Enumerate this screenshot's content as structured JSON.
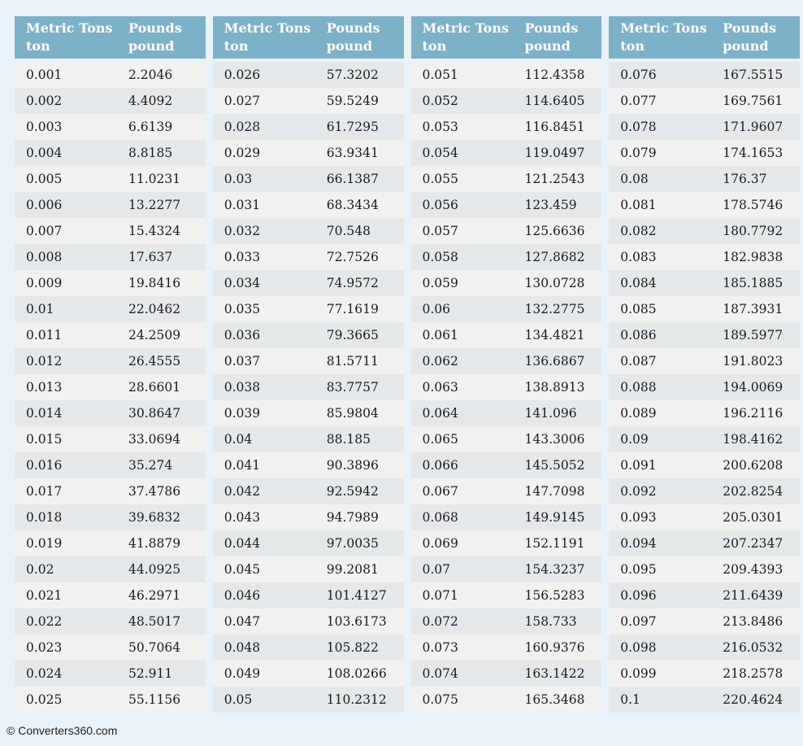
{
  "page": {
    "footer_text": "© Converters360.com"
  },
  "theme": {
    "page_bg": "#e9f2f8",
    "header_bg": "#7db1c7",
    "header_text": "#ffffff",
    "row_light": "#f1f1f0",
    "row_dark": "#e5e8ea",
    "cell_text": "#1b1b1b",
    "footer_text": "#222222"
  },
  "columns": {
    "tons_label_line1": "Metric Tons",
    "tons_label_line2": "ton",
    "pounds_label_line1": "Pounds",
    "pounds_label_line2": "pound"
  },
  "tables": [
    {
      "name": "table-1",
      "stripe_start": "light",
      "rows": [
        {
          "tons": "0.001",
          "pounds": "2.2046"
        },
        {
          "tons": "0.002",
          "pounds": "4.4092"
        },
        {
          "tons": "0.003",
          "pounds": "6.6139"
        },
        {
          "tons": "0.004",
          "pounds": "8.8185"
        },
        {
          "tons": "0.005",
          "pounds": "11.0231"
        },
        {
          "tons": "0.006",
          "pounds": "13.2277"
        },
        {
          "tons": "0.007",
          "pounds": "15.4324"
        },
        {
          "tons": "0.008",
          "pounds": "17.637"
        },
        {
          "tons": "0.009",
          "pounds": "19.8416"
        },
        {
          "tons": "0.01",
          "pounds": "22.0462"
        },
        {
          "tons": "0.011",
          "pounds": "24.2509"
        },
        {
          "tons": "0.012",
          "pounds": "26.4555"
        },
        {
          "tons": "0.013",
          "pounds": "28.6601"
        },
        {
          "tons": "0.014",
          "pounds": "30.8647"
        },
        {
          "tons": "0.015",
          "pounds": "33.0694"
        },
        {
          "tons": "0.016",
          "pounds": "35.274"
        },
        {
          "tons": "0.017",
          "pounds": "37.4786"
        },
        {
          "tons": "0.018",
          "pounds": "39.6832"
        },
        {
          "tons": "0.019",
          "pounds": "41.8879"
        },
        {
          "tons": "0.02",
          "pounds": "44.0925"
        },
        {
          "tons": "0.021",
          "pounds": "46.2971"
        },
        {
          "tons": "0.022",
          "pounds": "48.5017"
        },
        {
          "tons": "0.023",
          "pounds": "50.7064"
        },
        {
          "tons": "0.024",
          "pounds": "52.911"
        },
        {
          "tons": "0.025",
          "pounds": "55.1156"
        }
      ]
    },
    {
      "name": "table-2",
      "stripe_start": "dark",
      "rows": [
        {
          "tons": "0.026",
          "pounds": "57.3202"
        },
        {
          "tons": "0.027",
          "pounds": "59.5249"
        },
        {
          "tons": "0.028",
          "pounds": "61.7295"
        },
        {
          "tons": "0.029",
          "pounds": "63.9341"
        },
        {
          "tons": "0.03",
          "pounds": "66.1387"
        },
        {
          "tons": "0.031",
          "pounds": "68.3434"
        },
        {
          "tons": "0.032",
          "pounds": "70.548"
        },
        {
          "tons": "0.033",
          "pounds": "72.7526"
        },
        {
          "tons": "0.034",
          "pounds": "74.9572"
        },
        {
          "tons": "0.035",
          "pounds": "77.1619"
        },
        {
          "tons": "0.036",
          "pounds": "79.3665"
        },
        {
          "tons": "0.037",
          "pounds": "81.5711"
        },
        {
          "tons": "0.038",
          "pounds": "83.7757"
        },
        {
          "tons": "0.039",
          "pounds": "85.9804"
        },
        {
          "tons": "0.04",
          "pounds": "88.185"
        },
        {
          "tons": "0.041",
          "pounds": "90.3896"
        },
        {
          "tons": "0.042",
          "pounds": "92.5942"
        },
        {
          "tons": "0.043",
          "pounds": "94.7989"
        },
        {
          "tons": "0.044",
          "pounds": "97.0035"
        },
        {
          "tons": "0.045",
          "pounds": "99.2081"
        },
        {
          "tons": "0.046",
          "pounds": "101.4127"
        },
        {
          "tons": "0.047",
          "pounds": "103.6173"
        },
        {
          "tons": "0.048",
          "pounds": "105.822"
        },
        {
          "tons": "0.049",
          "pounds": "108.0266"
        },
        {
          "tons": "0.05",
          "pounds": "110.2312"
        }
      ]
    },
    {
      "name": "table-3",
      "stripe_start": "light",
      "rows": [
        {
          "tons": "0.051",
          "pounds": "112.4358"
        },
        {
          "tons": "0.052",
          "pounds": "114.6405"
        },
        {
          "tons": "0.053",
          "pounds": "116.8451"
        },
        {
          "tons": "0.054",
          "pounds": "119.0497"
        },
        {
          "tons": "0.055",
          "pounds": "121.2543"
        },
        {
          "tons": "0.056",
          "pounds": "123.459"
        },
        {
          "tons": "0.057",
          "pounds": "125.6636"
        },
        {
          "tons": "0.058",
          "pounds": "127.8682"
        },
        {
          "tons": "0.059",
          "pounds": "130.0728"
        },
        {
          "tons": "0.06",
          "pounds": "132.2775"
        },
        {
          "tons": "0.061",
          "pounds": "134.4821"
        },
        {
          "tons": "0.062",
          "pounds": "136.6867"
        },
        {
          "tons": "0.063",
          "pounds": "138.8913"
        },
        {
          "tons": "0.064",
          "pounds": "141.096"
        },
        {
          "tons": "0.065",
          "pounds": "143.3006"
        },
        {
          "tons": "0.066",
          "pounds": "145.5052"
        },
        {
          "tons": "0.067",
          "pounds": "147.7098"
        },
        {
          "tons": "0.068",
          "pounds": "149.9145"
        },
        {
          "tons": "0.069",
          "pounds": "152.1191"
        },
        {
          "tons": "0.07",
          "pounds": "154.3237"
        },
        {
          "tons": "0.071",
          "pounds": "156.5283"
        },
        {
          "tons": "0.072",
          "pounds": "158.733"
        },
        {
          "tons": "0.073",
          "pounds": "160.9376"
        },
        {
          "tons": "0.074",
          "pounds": "163.1422"
        },
        {
          "tons": "0.075",
          "pounds": "165.3468"
        }
      ]
    },
    {
      "name": "table-4",
      "stripe_start": "dark",
      "rows": [
        {
          "tons": "0.076",
          "pounds": "167.5515"
        },
        {
          "tons": "0.077",
          "pounds": "169.7561"
        },
        {
          "tons": "0.078",
          "pounds": "171.9607"
        },
        {
          "tons": "0.079",
          "pounds": "174.1653"
        },
        {
          "tons": "0.08",
          "pounds": "176.37"
        },
        {
          "tons": "0.081",
          "pounds": "178.5746"
        },
        {
          "tons": "0.082",
          "pounds": "180.7792"
        },
        {
          "tons": "0.083",
          "pounds": "182.9838"
        },
        {
          "tons": "0.084",
          "pounds": "185.1885"
        },
        {
          "tons": "0.085",
          "pounds": "187.3931"
        },
        {
          "tons": "0.086",
          "pounds": "189.5977"
        },
        {
          "tons": "0.087",
          "pounds": "191.8023"
        },
        {
          "tons": "0.088",
          "pounds": "194.0069"
        },
        {
          "tons": "0.089",
          "pounds": "196.2116"
        },
        {
          "tons": "0.09",
          "pounds": "198.4162"
        },
        {
          "tons": "0.091",
          "pounds": "200.6208"
        },
        {
          "tons": "0.092",
          "pounds": "202.8254"
        },
        {
          "tons": "0.093",
          "pounds": "205.0301"
        },
        {
          "tons": "0.094",
          "pounds": "207.2347"
        },
        {
          "tons": "0.095",
          "pounds": "209.4393"
        },
        {
          "tons": "0.096",
          "pounds": "211.6439"
        },
        {
          "tons": "0.097",
          "pounds": "213.8486"
        },
        {
          "tons": "0.098",
          "pounds": "216.0532"
        },
        {
          "tons": "0.099",
          "pounds": "218.2578"
        },
        {
          "tons": "0.1",
          "pounds": "220.4624"
        }
      ]
    }
  ]
}
